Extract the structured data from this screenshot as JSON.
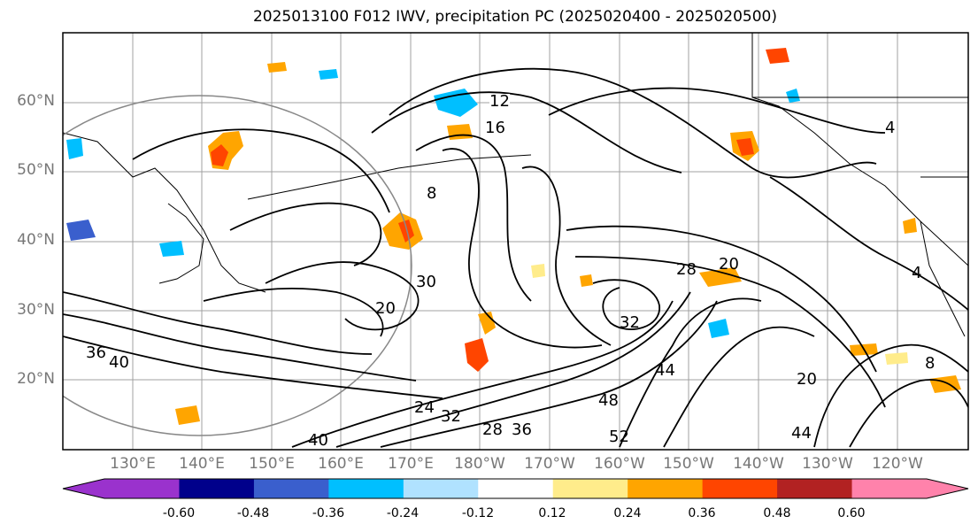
{
  "title": "2025013100 F012 IWV, precipitation PC (2025020400 - 2025020500)",
  "map": {
    "latitude_labels": [
      "60°N",
      "50°N",
      "40°N",
      "30°N",
      "20°N"
    ],
    "longitude_labels": [
      "130°E",
      "140°E",
      "150°E",
      "160°E",
      "170°E",
      "180°W",
      "170°W",
      "160°W",
      "150°W",
      "140°W",
      "130°W",
      "120°W"
    ],
    "contour_labels": [
      "12",
      "16",
      "8",
      "4",
      "20",
      "28",
      "30",
      "32",
      "20",
      "24",
      "28",
      "36",
      "40",
      "44",
      "48",
      "52",
      "32",
      "36",
      "40",
      "44",
      "20",
      "8",
      "4"
    ]
  },
  "colorbar": {
    "tick_labels": [
      "-0.60",
      "-0.48",
      "-0.36",
      "-0.24",
      "-0.12",
      "0.12",
      "0.24",
      "0.36",
      "0.48",
      "0.60"
    ],
    "colors": [
      "#9a32cd",
      "#00008b",
      "#3a5fcd",
      "#00bfff",
      "#b0e2ff",
      "#ffffff",
      "#ffec8b",
      "#ffa500",
      "#ff4500",
      "#b22222",
      "#ff82ab"
    ]
  }
}
